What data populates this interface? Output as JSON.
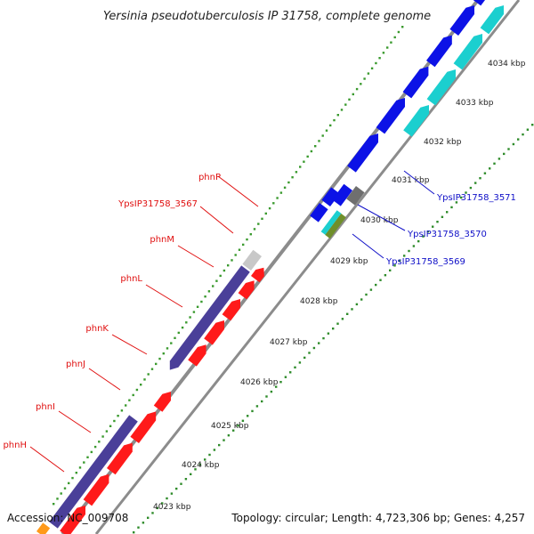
{
  "title": "Yersinia pseudotuberculosis IP 31758, complete genome",
  "footer": {
    "accession": "Accession: NC_009708",
    "summary": "Topology: circular; Length: 4,723,306 bp; Genes: 4,257"
  },
  "colors": {
    "backbone": "#8c8c8c",
    "dots_outer": "#3a9a2e",
    "dots_inner": "#2e8b2a",
    "forward_red": "#ff1a1a",
    "reverse_purple": "#4a3f99",
    "blue": "#0c12e6",
    "cyan": "#1bcfcf",
    "gray": "#6f6f6f",
    "lightgray": "#c8c8c8",
    "green": "#6f8f2a",
    "orange": "#ff9a1a",
    "label_red": "#e01010",
    "label_blue": "#1010c8"
  },
  "scale": {
    "ticks": [
      "4023 kbp",
      "4024 kbp",
      "4025 kbp",
      "4026 kbp",
      "4027 kbp",
      "4028 kbp",
      "4029 kbp",
      "4030 kbp",
      "4031 kbp",
      "4032 kbp",
      "4033 kbp",
      "4034 kbp"
    ]
  },
  "labels_left": [
    "phnP",
    "YpsIP31758_3567",
    "phnM",
    "phnL",
    "phnK",
    "phnJ",
    "phnI",
    "phnH"
  ],
  "labels_right": [
    "YpsIP31758_3571",
    "YpsIP31758_3570",
    "YpsIP31758_3569"
  ]
}
